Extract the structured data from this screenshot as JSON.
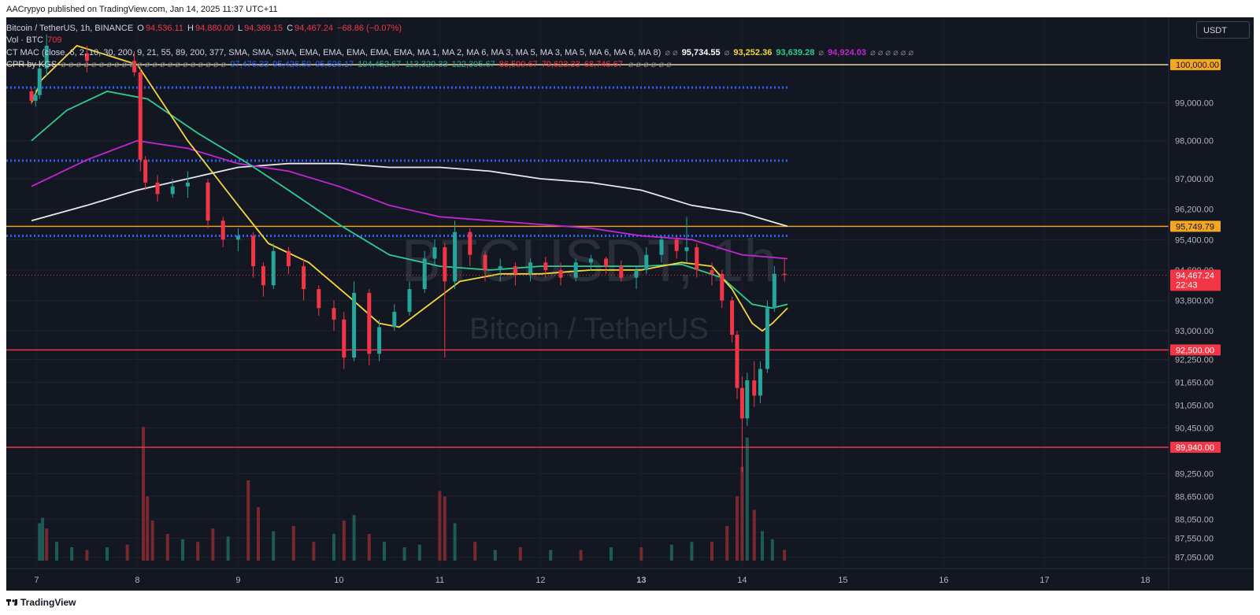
{
  "header": {
    "published_by": "AACrypyo published on TradingView.com, Jan 14, 2025 11:37 UTC+11"
  },
  "legend": {
    "symbol_line": {
      "symbol": "Bitcoin / TetherUS, 1h, BINANCE",
      "o_label": "O",
      "o": "94,536.11",
      "h_label": "H",
      "h": "94,880.00",
      "l_label": "L",
      "l": "94,369.15",
      "c_label": "C",
      "c": "94,467.24",
      "change": "−68.86 (−0.07%)"
    },
    "vol_line": {
      "label": "Vol · BTC",
      "value": "709"
    },
    "mac_line": {
      "label": "CT MAC (close, 6, 2, 10, 30, 200, 9, 21, 55, 89, 200, 377, SMA, SMA, SMA, EMA, EMA, EMA, EMA, EMA, MA 1, MA 2, MA 6, MA 3, MA 5, MA 3, MA 5, MA 6, MA 6, MA 8)",
      "values": [
        {
          "text": "95,734.55",
          "color": "#ffffff"
        },
        {
          "text": "93,252.36",
          "color": "#f5d63d"
        },
        {
          "text": "93,639.28",
          "color": "#2ecc8f"
        },
        {
          "text": "94,924.03",
          "color": "#c026d3"
        }
      ]
    },
    "cpr_line": {
      "label": "CPR by KGS",
      "values": [
        {
          "text": "97,476.33",
          "color": "#2962ff"
        },
        {
          "text": "95,426.50",
          "color": "#2962ff"
        },
        {
          "text": "95,526.17",
          "color": "#2962ff"
        },
        {
          "text": "104,452.67",
          "color": "#26a69a"
        },
        {
          "text": "113,329.33",
          "color": "#26a69a"
        },
        {
          "text": "122,305.67",
          "color": "#26a69a"
        },
        {
          "text": "86,599.67",
          "color": "#f23645"
        },
        {
          "text": "79,623.33",
          "color": "#f23645"
        },
        {
          "text": "68,746.67",
          "color": "#f23645"
        }
      ]
    }
  },
  "currency": "USDT",
  "watermark": {
    "ticker": "BTCUSDT, 1h",
    "name": "Bitcoin / TetherUS"
  },
  "footer": {
    "brand": "TradingView"
  },
  "colors": {
    "background": "#131722",
    "grid": "#1e222d",
    "up": "#26a69a",
    "down": "#f23645",
    "ema_yellow": "#f5d63d",
    "ema_green": "#2ecc8f",
    "ma_purple": "#c026d3",
    "ma_white": "#e8e8e8",
    "cpr_blue": "#2962ff",
    "level_orange": "#f5a623",
    "level_red": "#f23645",
    "level_white": "#ffe8a8"
  },
  "chart_data": {
    "type": "candlestick",
    "symbol": "BTCUSDT",
    "timeframe": "1h",
    "x_ticks": [
      "7",
      "8",
      "9",
      "10",
      "11",
      "12",
      "13",
      "14",
      "15",
      "16",
      "17",
      "18"
    ],
    "x_tick_days": [
      7,
      8,
      9,
      10,
      11,
      12,
      13,
      14,
      15,
      16,
      17,
      18
    ],
    "bold_tick": "13",
    "y_ticks": [
      "99,000.00",
      "98,000.00",
      "97,000.00",
      "96,200.00",
      "95,400.00",
      "94,600.00",
      "93,800.00",
      "93,000.00",
      "92,250.00",
      "91,650.00",
      "91,050.00",
      "90,450.00",
      "89,250.00",
      "88,650.00",
      "88,050.00",
      "87,550.00",
      "87,050.00"
    ],
    "y_tick_values": [
      99000,
      98000,
      97000,
      96200,
      95400,
      94600,
      93800,
      93000,
      92250,
      91650,
      91050,
      90450,
      89250,
      88650,
      88050,
      87550,
      87050
    ],
    "horizontal_levels": [
      {
        "label": "100,000.00",
        "value": 100000,
        "line_color": "#ffe8a8",
        "tag_bg": "#f5a623",
        "tag_fg": "#131722"
      },
      {
        "label": "95,749.79",
        "value": 95749.79,
        "line_color": "#f5a623",
        "tag_bg": "#f5a623",
        "tag_fg": "#131722"
      },
      {
        "label": "92,500.00",
        "value": 92500,
        "line_color": "#f23645",
        "tag_bg": "#f23645",
        "tag_fg": "#ffffff"
      },
      {
        "label": "89,940.00",
        "value": 89940,
        "line_color": "#f23645",
        "tag_bg": "#f23645",
        "tag_fg": "#ffffff"
      }
    ],
    "cpr_dotted_levels": [
      99400,
      97476.33,
      95500
    ],
    "last_price": {
      "label": "94,467.24",
      "countdown": "22:43",
      "value": 94467.24
    },
    "candles": [
      [
        "6.95",
        99300,
        99400,
        98950,
        99050
      ],
      [
        "6.99",
        99050,
        99350,
        98900,
        99200
      ],
      [
        "7.03",
        99200,
        100100,
        99100,
        99900
      ],
      [
        "7.10",
        99900,
        100800,
        99700,
        100500
      ],
      [
        "7.50",
        100300,
        100500,
        99800,
        100100
      ],
      [
        "7.97",
        100100,
        100350,
        99700,
        99800
      ],
      [
        "8.03",
        99800,
        99900,
        97200,
        97500
      ],
      [
        "8.08",
        97500,
        97600,
        96700,
        96900
      ],
      [
        "8.20",
        96900,
        97100,
        96400,
        96600
      ],
      [
        "8.35",
        96600,
        97000,
        96500,
        96800
      ],
      [
        "8.50",
        96800,
        97200,
        96500,
        96900
      ],
      [
        "8.70",
        96900,
        97000,
        95700,
        95900
      ],
      [
        "8.85",
        95900,
        96000,
        95200,
        95400
      ],
      [
        "9.00",
        95400,
        95700,
        95100,
        95500
      ],
      [
        "9.15",
        95500,
        95600,
        94400,
        94700
      ],
      [
        "9.25",
        94700,
        94800,
        93900,
        94200
      ],
      [
        "9.35",
        94200,
        95300,
        94100,
        95100
      ],
      [
        "9.50",
        95100,
        95200,
        94500,
        94700
      ],
      [
        "9.65",
        94700,
        94900,
        93800,
        94100
      ],
      [
        "9.80",
        94100,
        94200,
        93400,
        93600
      ],
      [
        "9.95",
        93600,
        93800,
        93000,
        93300
      ],
      [
        "10.05",
        93300,
        93500,
        92000,
        92300
      ],
      [
        "10.15",
        92300,
        94300,
        92200,
        94000
      ],
      [
        "10.30",
        94000,
        94100,
        92100,
        92400
      ],
      [
        "10.40",
        92400,
        93300,
        92200,
        93100
      ],
      [
        "10.55",
        93100,
        93700,
        93000,
        93500
      ],
      [
        "10.70",
        93500,
        94300,
        93400,
        94100
      ],
      [
        "10.85",
        94100,
        95100,
        94000,
        94900
      ],
      [
        "10.95",
        94900,
        95400,
        94700,
        95200
      ],
      [
        "11.05",
        95200,
        95300,
        92300,
        94300
      ],
      [
        "11.15",
        94300,
        95900,
        94100,
        95600
      ],
      [
        "11.30",
        95600,
        95700,
        94700,
        95000
      ],
      [
        "11.45",
        95000,
        95100,
        94300,
        94600
      ],
      [
        "11.60",
        94600,
        94900,
        94300,
        94700
      ],
      [
        "11.75",
        94700,
        94800,
        94200,
        94500
      ],
      [
        "11.90",
        94500,
        94900,
        94300,
        94800
      ],
      [
        "12.05",
        94800,
        94950,
        94400,
        94600
      ],
      [
        "12.20",
        94600,
        94800,
        94200,
        94400
      ],
      [
        "12.35",
        94400,
        94900,
        94300,
        94800
      ],
      [
        "12.50",
        94800,
        95000,
        94600,
        94900
      ],
      [
        "12.65",
        94900,
        94950,
        94500,
        94700
      ],
      [
        "12.80",
        94700,
        94850,
        94300,
        94400
      ],
      [
        "12.95",
        94400,
        94700,
        94100,
        94600
      ],
      [
        "13.05",
        94600,
        95200,
        94500,
        95000
      ],
      [
        "13.20",
        95000,
        95500,
        94800,
        95400
      ],
      [
        "13.35",
        95400,
        95500,
        94900,
        95100
      ],
      [
        "13.45",
        95100,
        96000,
        94800,
        95200
      ],
      [
        "13.55",
        95200,
        95300,
        94400,
        94600
      ],
      [
        "13.70",
        94600,
        94800,
        94200,
        94500
      ],
      [
        "13.80",
        94500,
        94600,
        93600,
        93800
      ],
      [
        "13.90",
        93800,
        93900,
        92700,
        92900
      ],
      [
        "13.95",
        92900,
        93000,
        91200,
        91500
      ],
      [
        "14.00",
        91500,
        91800,
        89300,
        90700
      ],
      [
        "14.05",
        90700,
        91900,
        90500,
        91700
      ],
      [
        "14.12",
        91700,
        92200,
        91000,
        91300
      ],
      [
        "14.18",
        91300,
        92200,
        91100,
        92000
      ],
      [
        "14.25",
        92000,
        93800,
        91900,
        93600
      ],
      [
        "14.32",
        93600,
        94700,
        93500,
        94500
      ],
      [
        "14.42",
        94500,
        94900,
        94300,
        94467.24
      ]
    ],
    "ema_yellow": [
      [
        6.95,
        99000
      ],
      [
        7.05,
        99600
      ],
      [
        7.4,
        100500
      ],
      [
        8.0,
        100000
      ],
      [
        8.5,
        98000
      ],
      [
        9.0,
        96300
      ],
      [
        9.3,
        95300
      ],
      [
        9.7,
        94800
      ],
      [
        10.1,
        93900
      ],
      [
        10.4,
        93200
      ],
      [
        10.6,
        93100
      ],
      [
        10.9,
        93700
      ],
      [
        11.2,
        94300
      ],
      [
        11.6,
        94500
      ],
      [
        12.0,
        94500
      ],
      [
        12.5,
        94600
      ],
      [
        13.0,
        94600
      ],
      [
        13.4,
        94800
      ],
      [
        13.7,
        94700
      ],
      [
        13.9,
        94100
      ],
      [
        14.1,
        93200
      ],
      [
        14.2,
        93000
      ],
      [
        14.3,
        93200
      ],
      [
        14.45,
        93600
      ]
    ],
    "ema_green": [
      [
        6.95,
        98000
      ],
      [
        7.3,
        98800
      ],
      [
        7.7,
        99300
      ],
      [
        8.1,
        99100
      ],
      [
        8.6,
        98200
      ],
      [
        9.1,
        97400
      ],
      [
        9.5,
        96700
      ],
      [
        10.0,
        95800
      ],
      [
        10.5,
        95000
      ],
      [
        11.0,
        94700
      ],
      [
        11.5,
        94600
      ],
      [
        12.0,
        94700
      ],
      [
        12.5,
        94700
      ],
      [
        13.0,
        94700
      ],
      [
        13.4,
        94750
      ],
      [
        13.8,
        94400
      ],
      [
        14.1,
        93700
      ],
      [
        14.3,
        93600
      ],
      [
        14.45,
        93700
      ]
    ],
    "ma_purple": [
      [
        6.95,
        96800
      ],
      [
        7.5,
        97500
      ],
      [
        8.0,
        98000
      ],
      [
        8.5,
        97800
      ],
      [
        9.0,
        97400
      ],
      [
        9.5,
        97200
      ],
      [
        10.0,
        96800
      ],
      [
        10.5,
        96300
      ],
      [
        11.0,
        96000
      ],
      [
        11.5,
        95900
      ],
      [
        12.0,
        95800
      ],
      [
        12.5,
        95700
      ],
      [
        13.0,
        95500
      ],
      [
        13.5,
        95400
      ],
      [
        14.0,
        95000
      ],
      [
        14.45,
        94900
      ]
    ],
    "ma_white": [
      [
        6.95,
        95900
      ],
      [
        7.5,
        96300
      ],
      [
        8.0,
        96700
      ],
      [
        8.5,
        97000
      ],
      [
        9.0,
        97300
      ],
      [
        9.5,
        97400
      ],
      [
        10.0,
        97400
      ],
      [
        10.5,
        97300
      ],
      [
        11.0,
        97300
      ],
      [
        11.5,
        97200
      ],
      [
        12.0,
        97000
      ],
      [
        12.5,
        96900
      ],
      [
        13.0,
        96700
      ],
      [
        13.5,
        96300
      ],
      [
        14.0,
        96100
      ],
      [
        14.45,
        95750
      ]
    ],
    "volume": [
      [
        7.03,
        28,
        "up"
      ],
      [
        7.06,
        32,
        "up"
      ],
      [
        7.1,
        24,
        "down"
      ],
      [
        7.2,
        14,
        "up"
      ],
      [
        7.35,
        10,
        "up"
      ],
      [
        7.5,
        8,
        "down"
      ],
      [
        7.7,
        10,
        "up"
      ],
      [
        7.9,
        12,
        "down"
      ],
      [
        8.06,
        100,
        "down"
      ],
      [
        8.1,
        48,
        "down"
      ],
      [
        8.15,
        30,
        "down"
      ],
      [
        8.3,
        20,
        "down"
      ],
      [
        8.45,
        16,
        "up"
      ],
      [
        8.6,
        14,
        "down"
      ],
      [
        8.75,
        24,
        "down"
      ],
      [
        8.9,
        18,
        "up"
      ],
      [
        9.1,
        60,
        "down"
      ],
      [
        9.2,
        40,
        "down"
      ],
      [
        9.35,
        22,
        "up"
      ],
      [
        9.55,
        26,
        "down"
      ],
      [
        9.75,
        14,
        "down"
      ],
      [
        9.95,
        20,
        "up"
      ],
      [
        10.05,
        30,
        "down"
      ],
      [
        10.15,
        34,
        "up"
      ],
      [
        10.3,
        20,
        "down"
      ],
      [
        10.45,
        14,
        "up"
      ],
      [
        10.65,
        10,
        "up"
      ],
      [
        10.8,
        12,
        "up"
      ],
      [
        11.0,
        52,
        "down"
      ],
      [
        11.05,
        48,
        "down"
      ],
      [
        11.15,
        28,
        "up"
      ],
      [
        11.35,
        14,
        "down"
      ],
      [
        11.55,
        8,
        "up"
      ],
      [
        11.8,
        10,
        "down"
      ],
      [
        12.1,
        8,
        "up"
      ],
      [
        12.4,
        8,
        "down"
      ],
      [
        12.7,
        10,
        "up"
      ],
      [
        13.0,
        10,
        "down"
      ],
      [
        13.3,
        12,
        "up"
      ],
      [
        13.5,
        14,
        "up"
      ],
      [
        13.7,
        14,
        "down"
      ],
      [
        13.85,
        26,
        "down"
      ],
      [
        13.95,
        48,
        "down"
      ],
      [
        14.0,
        70,
        "down"
      ],
      [
        14.05,
        92,
        "up"
      ],
      [
        14.12,
        38,
        "down"
      ],
      [
        14.2,
        22,
        "up"
      ],
      [
        14.3,
        16,
        "up"
      ],
      [
        14.42,
        8,
        "down"
      ]
    ]
  }
}
